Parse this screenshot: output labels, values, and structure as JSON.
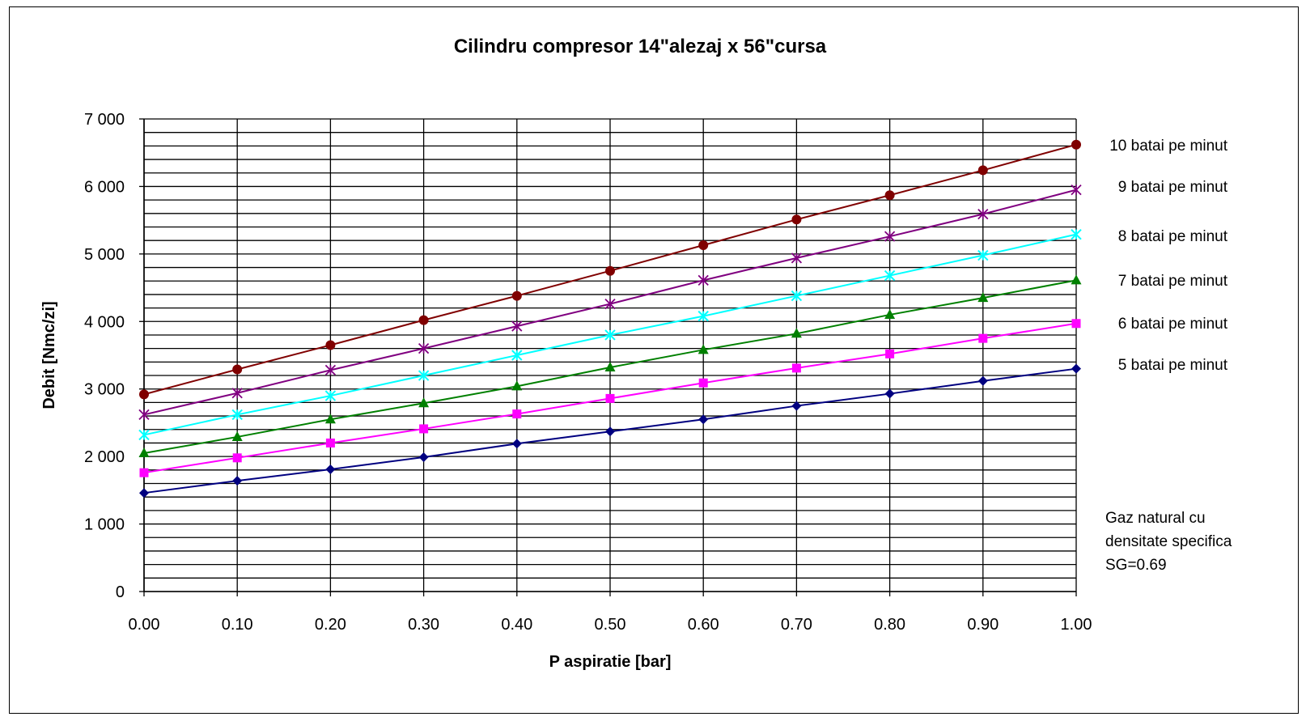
{
  "chart_data": {
    "type": "line",
    "title": "Cilindru compresor 14\"alezaj x 56\"cursa",
    "xlabel": "P aspiratie [bar]",
    "ylabel": "Debit [Nmc/zi]",
    "xlim": [
      0,
      1
    ],
    "ylim": [
      0,
      7000
    ],
    "x_ticks": [
      "0.00",
      "0.10",
      "0.20",
      "0.30",
      "0.40",
      "0.50",
      "0.60",
      "0.70",
      "0.80",
      "0.90",
      "1.00"
    ],
    "y_ticks": [
      "0",
      "1 000",
      "2 000",
      "3 000",
      "4 000",
      "5 000",
      "6 000",
      "7 000"
    ],
    "y_minor_step": 200,
    "grid": true,
    "x": [
      0.0,
      0.1,
      0.2,
      0.3,
      0.4,
      0.5,
      0.6,
      0.7,
      0.8,
      0.9,
      1.0
    ],
    "series": [
      {
        "name": "5 batai pe minut",
        "color": "#000080",
        "marker": "diamond",
        "values": [
          1460,
          1640,
          1810,
          1990,
          2190,
          2370,
          2550,
          2750,
          2930,
          3120,
          3300
        ]
      },
      {
        "name": "6 batai pe minut",
        "color": "#ff00ff",
        "marker": "square",
        "values": [
          1760,
          1980,
          2200,
          2410,
          2630,
          2860,
          3090,
          3310,
          3520,
          3750,
          3970
        ]
      },
      {
        "name": "7 batai pe minut",
        "color": "#008000",
        "marker": "triangle",
        "values": [
          2050,
          2290,
          2550,
          2790,
          3040,
          3320,
          3580,
          3820,
          4100,
          4350,
          4610
        ]
      },
      {
        "name": "8 batai pe minut",
        "color": "#00ffff",
        "marker": "asterisk",
        "values": [
          2320,
          2620,
          2900,
          3200,
          3500,
          3800,
          4080,
          4380,
          4680,
          4980,
          5290
        ]
      },
      {
        "name": "9 batai pe minut",
        "color": "#800080",
        "marker": "star",
        "values": [
          2620,
          2940,
          3280,
          3600,
          3930,
          4260,
          4610,
          4940,
          5260,
          5590,
          5950
        ]
      },
      {
        "name": "10 batai pe minut",
        "color": "#800000",
        "marker": "circle",
        "values": [
          2920,
          3290,
          3650,
          4020,
          4380,
          4750,
          5130,
          5510,
          5870,
          6240,
          6620
        ]
      }
    ],
    "legend_placement": "right, next to line ends",
    "annotation": [
      "Gaz natural cu",
      "densitate specifica",
      "SG=0.69"
    ]
  }
}
